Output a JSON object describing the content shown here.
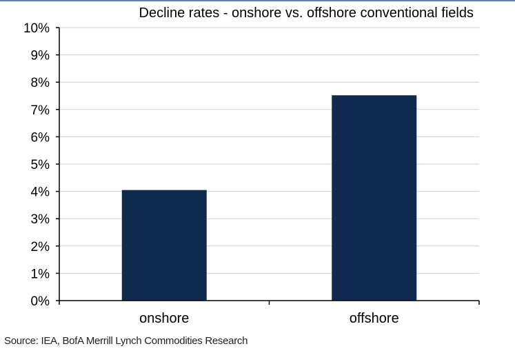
{
  "chart_data": {
    "type": "bar",
    "title": "Decline rates - onshore vs. offshore conventional fields",
    "xlabel": "",
    "ylabel": "",
    "categories": [
      "onshore",
      "offshore"
    ],
    "values": [
      4.05,
      7.52
    ],
    "value_unit": "%",
    "ylim": [
      0,
      10
    ],
    "yticks": [
      "0%",
      "1%",
      "2%",
      "3%",
      "4%",
      "5%",
      "6%",
      "7%",
      "8%",
      "9%",
      "10%"
    ],
    "grid": true,
    "legend": "none",
    "bar_color": "#0f2a4f",
    "grid_color": "#d0d0d0",
    "axis_color": "#000000"
  },
  "source": "Source: IEA, BofA Merrill Lynch Commodities Research"
}
